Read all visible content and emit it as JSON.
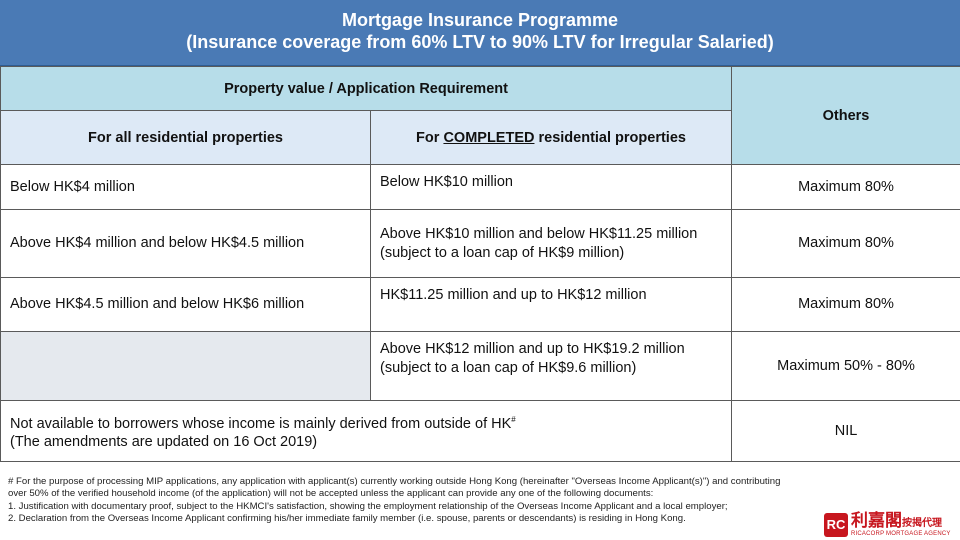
{
  "title": {
    "line1": "Mortgage Insurance Programme",
    "line2": "(Insurance coverage from 60% LTV to 90% LTV for Irregular Salaried)"
  },
  "headers": {
    "property_requirement": "Property value / Application Requirement",
    "others": "Others",
    "all_residential": "For all residential properties",
    "completed_prefix": "For ",
    "completed_word": "COMPLETED",
    "completed_suffix": " residential properties"
  },
  "rows": [
    {
      "all": "Below HK$4 million",
      "completed_l1": "Below HK$10 million",
      "completed_l2": "",
      "others": "Maximum 80%"
    },
    {
      "all": "Above HK$4 million and below HK$4.5 million",
      "completed_l1": "Above HK$10 million and below  HK$11.25 million",
      "completed_l2": "(subject to a loan cap of HK$9 million)",
      "others": "Maximum 80%"
    },
    {
      "all": "Above HK$4.5 million and below HK$6 million",
      "completed_l1": "HK$11.25 million and up to HK$12 million",
      "completed_l2": "",
      "others": "Maximum 80%"
    },
    {
      "all": "",
      "completed_l1": "Above HK$12 million and up to HK$19.2 million",
      "completed_l2": "(subject to a loan cap of HK$9.6 million)",
      "others": "Maximum  50% - 80%"
    }
  ],
  "not_available": {
    "line1": "Not available to borrowers whose income is mainly derived from outside of HK",
    "mark": "#",
    "line2": "(The amendments are updated on 16 Oct 2019)",
    "others": "NIL"
  },
  "footnote": {
    "line1": "# For the purpose of processing MIP applications, any application with applicant(s) currently working outside Hong Kong (hereinafter \"Overseas Income Applicant(s)\") and contributing",
    "line2": "over 50% of the verified household income (of the application) will not be accepted unless the applicant can provide any one of the following documents:",
    "line3": "1. Justification with documentary proof, subject to the HKMCI's satisfaction, showing the employment relationship of the Overseas Income Applicant and a local employer;",
    "line4": "2. Declaration from the Overseas Income Applicant confirming his/her immediate family member (i.e. spouse, parents or descendants) is residing in Hong Kong."
  },
  "logo": {
    "mark": "RC",
    "cn_name": "利嘉閣",
    "cn_suffix": "按揭代理",
    "en_name": "RICACORP MORTGAGE AGENCY"
  }
}
